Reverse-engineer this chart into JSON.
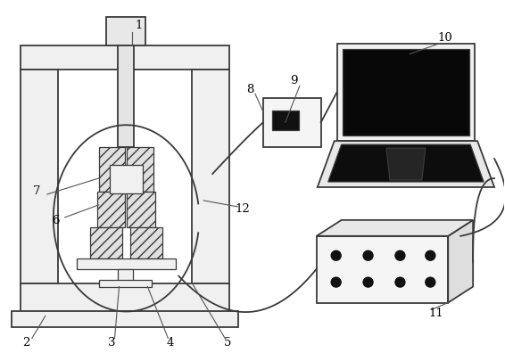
{
  "bg_color": "#ffffff",
  "line_color": "#3a3a3a",
  "label_color": "#000000",
  "lw_main": 1.3,
  "lw_thin": 0.9
}
